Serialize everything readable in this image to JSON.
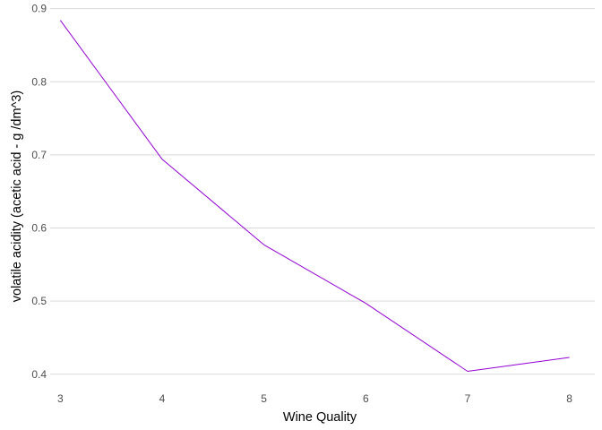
{
  "chart_data": {
    "type": "line",
    "title": "",
    "xlabel": "Wine Quality",
    "ylabel": "volatile acidity (acetic acid - g /dm^3)",
    "x": [
      3,
      4,
      5,
      6,
      7,
      8
    ],
    "series": [
      {
        "values": [
          0.884,
          0.694,
          0.577,
          0.497,
          0.404,
          0.423
        ],
        "color": "#9400D3"
      }
    ],
    "xlim": [
      2.9,
      8.25
    ],
    "ylim": [
      0.385,
      0.902
    ],
    "xticks": [
      "3",
      "4",
      "5",
      "6",
      "7",
      "8"
    ],
    "yticks": [
      "0.4",
      "0.5",
      "0.6",
      "0.7",
      "0.8",
      "0.9"
    ],
    "grid": "horizontal major",
    "legend": "none"
  }
}
